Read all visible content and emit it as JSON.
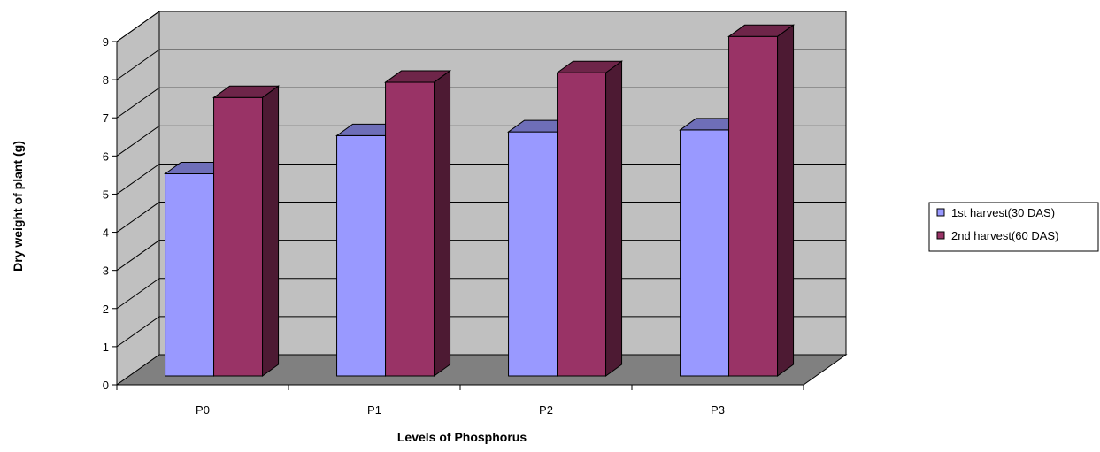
{
  "chart_data": {
    "type": "bar",
    "title": "",
    "xlabel": "Levels of Phosphorus",
    "ylabel": "Dry weight  of plant (g)",
    "categories": [
      "P0",
      "P1",
      "P2",
      "P3"
    ],
    "series": [
      {
        "name": "1st harvest(30 DAS)",
        "values": [
          5.3,
          6.3,
          6.4,
          6.45
        ],
        "color": "#9999ff"
      },
      {
        "name": "2nd  harvest(60 DAS)",
        "values": [
          7.3,
          7.7,
          7.95,
          8.9
        ],
        "color": "#993366"
      }
    ],
    "ylim": [
      0,
      9
    ],
    "yticks": [
      "0",
      "1",
      "2",
      "3",
      "4",
      "5",
      "6",
      "7",
      "8",
      "9"
    ],
    "grid": true,
    "legend_position": "right",
    "style": "3d-clustered-column",
    "wall_color": "#c0c0c0",
    "floor_color": "#808080"
  }
}
